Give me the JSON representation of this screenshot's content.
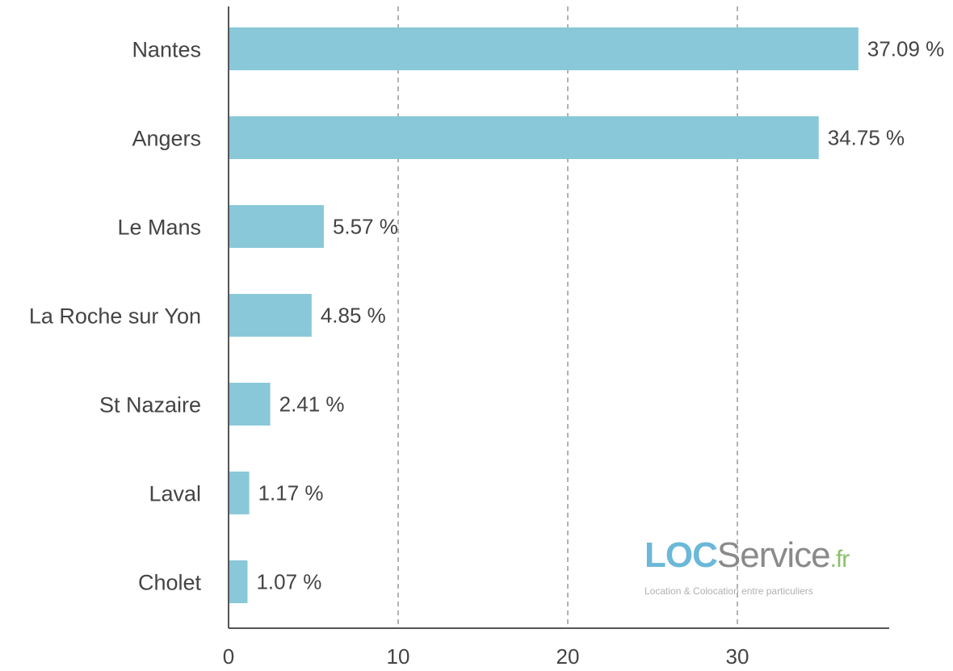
{
  "chart_data": {
    "type": "bar",
    "orientation": "horizontal",
    "categories": [
      "Nantes",
      "Angers",
      "Le Mans",
      "La Roche sur Yon",
      "St Nazaire",
      "Laval",
      "Cholet"
    ],
    "values": [
      37.09,
      34.75,
      5.57,
      4.85,
      2.41,
      1.17,
      1.07
    ],
    "value_labels": [
      "37.09 %",
      "34.75 %",
      "5.57 %",
      "4.85 %",
      "2.41 %",
      "1.17 %",
      "1.07 %"
    ],
    "x_ticks": [
      "0",
      "10",
      "20",
      "30"
    ],
    "xlim": [
      0,
      39
    ],
    "title": "",
    "xlabel": "",
    "ylabel": "",
    "grid": "vertical dashed",
    "bar_color": "#89c8d8"
  },
  "logo": {
    "part1": "LOC",
    "part2": "Service",
    "part3": ".fr",
    "tagline": "Location & Colocation entre particuliers"
  }
}
